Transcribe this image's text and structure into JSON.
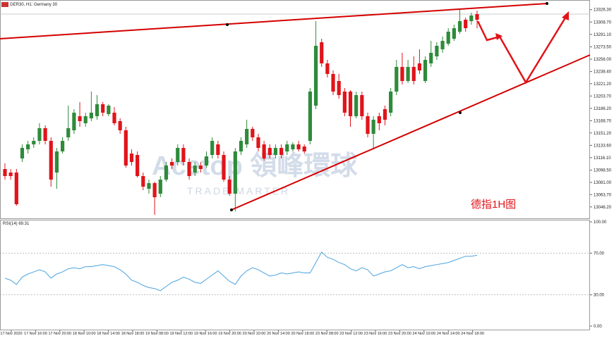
{
  "chart_data": {
    "type": "candlestick",
    "title": "GER30, H1: Germany 30",
    "annotation": "德指1H图",
    "watermark": "Acetop 領峰環球",
    "watermark_sub": "TRADE MARTER",
    "x_labels": [
      "17 Nov 2020",
      "17 Nov 16:00",
      "17 Nov 20:00",
      "18 Nov 10:00",
      "18 Nov 14:00",
      "18 Nov 18:00",
      "19 Nov 08:00",
      "19 Nov 12:00",
      "19 Nov 16:00",
      "19 Nov 20:00",
      "20 Nov 10:00",
      "20 Nov 14:00",
      "20 Nov 18:00",
      "23 Nov 08:00",
      "23 Nov 12:00",
      "23 Nov 16:00",
      "23 Nov 20:00",
      "24 Nov 10:00",
      "24 Nov 14:00",
      "24 Nov 18:00"
    ],
    "up_color": "#2e8b3a",
    "down_color": "#e0141a",
    "ylim": [
      13030,
      13340
    ],
    "yticks": [
      {
        "value": 13326.3,
        "label": "13326.30"
      },
      {
        "value": 13308.7,
        "label": "13308.70"
      },
      {
        "value": 13291.1,
        "label": "13291.10"
      },
      {
        "value": 13273.5,
        "label": "13273.50"
      },
      {
        "value": 13256,
        "label": "13256.00"
      },
      {
        "value": 13238.4,
        "label": "13238.40"
      },
      {
        "value": 13221.2,
        "label": "13221.20"
      },
      {
        "value": 13203.7,
        "label": "13203.70"
      },
      {
        "value": 13186.2,
        "label": "13186.20"
      },
      {
        "value": 13168.7,
        "label": "13168.70"
      },
      {
        "value": 13151.2,
        "label": "13151.20"
      },
      {
        "value": 13133.6,
        "label": "13133.60"
      },
      {
        "value": 13116.1,
        "label": "13116.10"
      },
      {
        "value": 13098.5,
        "label": "13098.50"
      },
      {
        "value": 13081,
        "label": "13081.00"
      },
      {
        "value": 13063.7,
        "label": "13063.70"
      },
      {
        "value": 13046.2,
        "label": "13046.20"
      }
    ],
    "open": [
      13100,
      13095,
      13095,
      13115,
      13128,
      13135,
      13140,
      13158,
      13140,
      13095,
      13125,
      13145,
      13155,
      13175,
      13165,
      13172,
      13175,
      13192,
      13178,
      13180,
      13168,
      13155,
      13122,
      13120,
      13090,
      13072,
      13080,
      13065,
      13085,
      13110,
      13110,
      13130,
      13110,
      13095,
      13105,
      13105,
      13120,
      13135,
      13120,
      13085,
      13065,
      13125,
      13135,
      13157,
      13145,
      13135,
      13130,
      13120,
      13130,
      13125,
      13128,
      13135,
      13132,
      13140,
      13190,
      13280,
      13250,
      13235,
      13225,
      13210,
      13210,
      13175,
      13205,
      13175,
      13150,
      13175,
      13185,
      13180,
      13210,
      13245,
      13225,
      13245,
      13250,
      13225,
      13250,
      13260,
      13270,
      13278,
      13285,
      13295,
      13312,
      13310,
      13320
    ],
    "high": [
      13108,
      13100,
      13100,
      13135,
      13140,
      13145,
      13165,
      13162,
      13145,
      13130,
      13145,
      13190,
      13185,
      13195,
      13180,
      13210,
      13205,
      13195,
      13192,
      13188,
      13172,
      13160,
      13128,
      13125,
      13095,
      13085,
      13082,
      13090,
      13110,
      13115,
      13135,
      13135,
      13115,
      13110,
      13110,
      13125,
      13145,
      13140,
      13125,
      13090,
      13130,
      13145,
      13170,
      13160,
      13150,
      13140,
      13135,
      13135,
      13135,
      13140,
      13138,
      13140,
      13135,
      13215,
      13310,
      13285,
      13255,
      13240,
      13235,
      13215,
      13212,
      13210,
      13210,
      13180,
      13175,
      13180,
      13190,
      13215,
      13255,
      13265,
      13255,
      13260,
      13270,
      13260,
      13282,
      13280,
      13288,
      13300,
      13305,
      13328,
      13315,
      13322,
      13325
    ],
    "low": [
      13085,
      13085,
      13048,
      13110,
      13122,
      13130,
      13135,
      13135,
      13075,
      13072,
      13122,
      13140,
      13150,
      13160,
      13160,
      13168,
      13170,
      13175,
      13175,
      13162,
      13150,
      13102,
      13105,
      13088,
      13070,
      13065,
      13035,
      13060,
      13082,
      13100,
      13105,
      13105,
      13085,
      13090,
      13095,
      13102,
      13115,
      13115,
      13082,
      13062,
      13040,
      13120,
      13130,
      13140,
      13125,
      13112,
      13115,
      13115,
      13115,
      13120,
      13125,
      13125,
      13122,
      13135,
      13185,
      13245,
      13230,
      13205,
      13200,
      13175,
      13160,
      13172,
      13170,
      13145,
      13130,
      13155,
      13162,
      13175,
      13205,
      13220,
      13222,
      13220,
      13235,
      13222,
      13245,
      13255,
      13265,
      13275,
      13282,
      13292,
      13295,
      13305,
      13300
    ],
    "close": [
      13090,
      13090,
      13050,
      13130,
      13135,
      13140,
      13158,
      13140,
      13085,
      13125,
      13140,
      13158,
      13180,
      13168,
      13175,
      13180,
      13192,
      13180,
      13190,
      13165,
      13155,
      13105,
      13110,
      13090,
      13075,
      13080,
      13060,
      13085,
      13105,
      13105,
      13130,
      13110,
      13090,
      13105,
      13100,
      13118,
      13140,
      13120,
      13085,
      13065,
      13125,
      13140,
      13157,
      13145,
      13130,
      13115,
      13120,
      13130,
      13120,
      13135,
      13135,
      13128,
      13125,
      13210,
      13275,
      13250,
      13235,
      13210,
      13205,
      13180,
      13175,
      13205,
      13175,
      13150,
      13170,
      13165,
      13170,
      13210,
      13245,
      13225,
      13245,
      13225,
      13240,
      13255,
      13265,
      13275,
      13282,
      13295,
      13300,
      13310,
      13300,
      13318,
      13312
    ],
    "rsi_title": "RSI(14) 69.31",
    "rsi_color": "#4aa3df",
    "rsi_ylim": [
      0,
      100
    ],
    "rsi_ticks": [
      {
        "value": 100,
        "label": "100.00"
      },
      {
        "value": 70,
        "label": "70.00"
      },
      {
        "value": 30,
        "label": "30.00"
      },
      {
        "value": 0,
        "label": "0.00"
      }
    ],
    "rsi": [
      46,
      44,
      40,
      47,
      50,
      52,
      54,
      52,
      46,
      50,
      52,
      55,
      56,
      55,
      57,
      57,
      58,
      59,
      58,
      57,
      54,
      50,
      44,
      42,
      39,
      37,
      36,
      34,
      38,
      42,
      44,
      47,
      45,
      42,
      41,
      45,
      49,
      53,
      48,
      43,
      40,
      48,
      53,
      56,
      54,
      51,
      48,
      49,
      51,
      50,
      51,
      52,
      51,
      51,
      61,
      71,
      66,
      64,
      61,
      59,
      55,
      53,
      56,
      54,
      48,
      50,
      52,
      53,
      56,
      59,
      56,
      57,
      55,
      57,
      58,
      59,
      60,
      61,
      63,
      65,
      67,
      67,
      68
    ]
  }
}
